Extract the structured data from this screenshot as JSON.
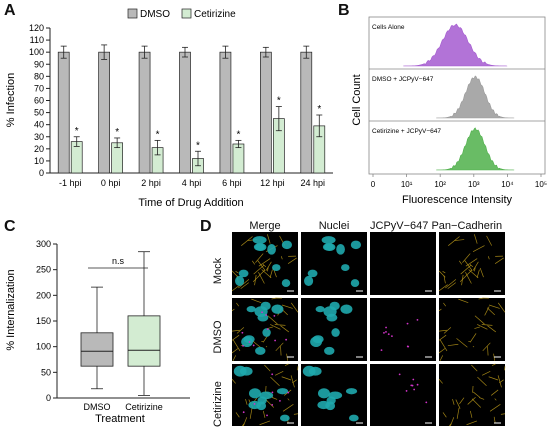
{
  "panel_letters": [
    "A",
    "B",
    "C",
    "D"
  ],
  "chart_data": [
    {
      "panel": "A",
      "type": "bar",
      "ylabel": "% Infection",
      "xlabel": "Time of Drug Addition",
      "ylim": [
        0,
        120
      ],
      "yticks": [
        0,
        10,
        20,
        30,
        40,
        50,
        60,
        70,
        80,
        90,
        100,
        110,
        120
      ],
      "categories": [
        "-1 hpi",
        "0 hpi",
        "2 hpi",
        "4 hpi",
        "6 hpi",
        "12 hpi",
        "24 hpi"
      ],
      "series": [
        {
          "name": "DMSO",
          "color": "#b9b9b9",
          "values": [
            100,
            100,
            100,
            100,
            100,
            100,
            100
          ],
          "errors": [
            5,
            6,
            5,
            4,
            5,
            4,
            5
          ]
        },
        {
          "name": "Cetirizine",
          "color": "#d3ecd2",
          "values": [
            26,
            25,
            21,
            12,
            24,
            45,
            39
          ],
          "errors": [
            4,
            4,
            6,
            6,
            3,
            10,
            9
          ]
        }
      ],
      "annotations": [
        "*",
        "*",
        "*",
        "*",
        "*",
        "*",
        "*"
      ],
      "legend_placement": "top"
    },
    {
      "panel": "B",
      "type": "area",
      "ylabel": "Cell Count",
      "xlabel": "Fluorescence Intensity",
      "xscale": "log",
      "xticks": [
        "0",
        "10¹",
        "10²",
        "10³",
        "10⁴",
        "10⁵"
      ],
      "series": [
        {
          "name": "Cells Alone",
          "color": "#a45ad0",
          "peak": 280
        },
        {
          "name": "DMSO + JCPyV−647",
          "color": "#9a9a9a",
          "peak": 1100
        },
        {
          "name": "Cetirizine + JCPyV−647",
          "color": "#4fb04a",
          "peak": 1100
        }
      ]
    },
    {
      "panel": "C",
      "type": "box",
      "ylabel": "% Internalization",
      "xlabel": "Treatment",
      "ylim": [
        0,
        300
      ],
      "yticks": [
        0,
        50,
        100,
        150,
        200,
        250,
        300
      ],
      "categories": [
        "DMSO",
        "Cetirizine"
      ],
      "boxes": [
        {
          "name": "DMSO",
          "color": "#b9b9b9",
          "min": 18,
          "q1": 62,
          "median": 91,
          "q3": 127,
          "max": 216
        },
        {
          "name": "Cetirizine",
          "color": "#d3ecd2",
          "min": 5,
          "q1": 62,
          "median": 93,
          "q3": 160,
          "max": 285
        }
      ],
      "significance": "n.s"
    }
  ],
  "microscopy": {
    "columns": [
      "Merge",
      "Nuclei",
      "JCPyV−647",
      "Pan−Cadherin"
    ],
    "rows": [
      "Mock",
      "DMSO",
      "Cetirizine"
    ]
  }
}
